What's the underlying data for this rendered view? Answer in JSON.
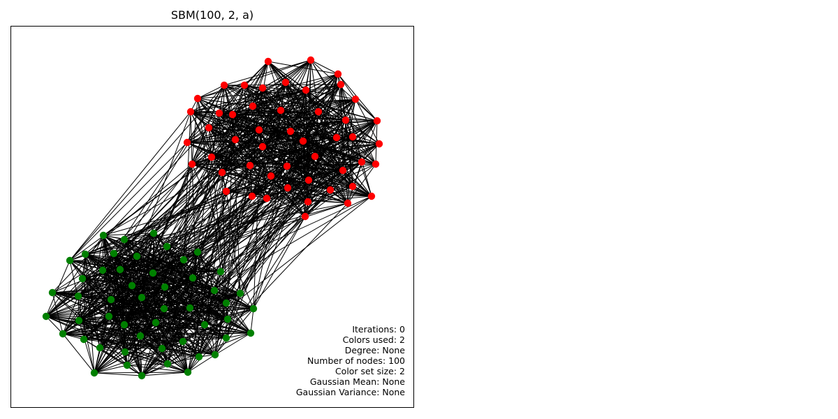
{
  "title": "SBM(100, 2, a)",
  "info": [
    "Iterations: 0",
    "Colors used: 2",
    "Degree: None",
    "Number of nodes: 100",
    "Color set size: 2",
    "Gaussian Mean: None",
    "Gaussian Variance: None"
  ],
  "colors": {
    "community_1": "#ff0000",
    "community_2": "#008000",
    "edge": "#000000"
  },
  "graph": {
    "nodes": [
      {
        "community": 1,
        "count": 50
      },
      {
        "community": 2,
        "count": 50
      }
    ]
  }
}
